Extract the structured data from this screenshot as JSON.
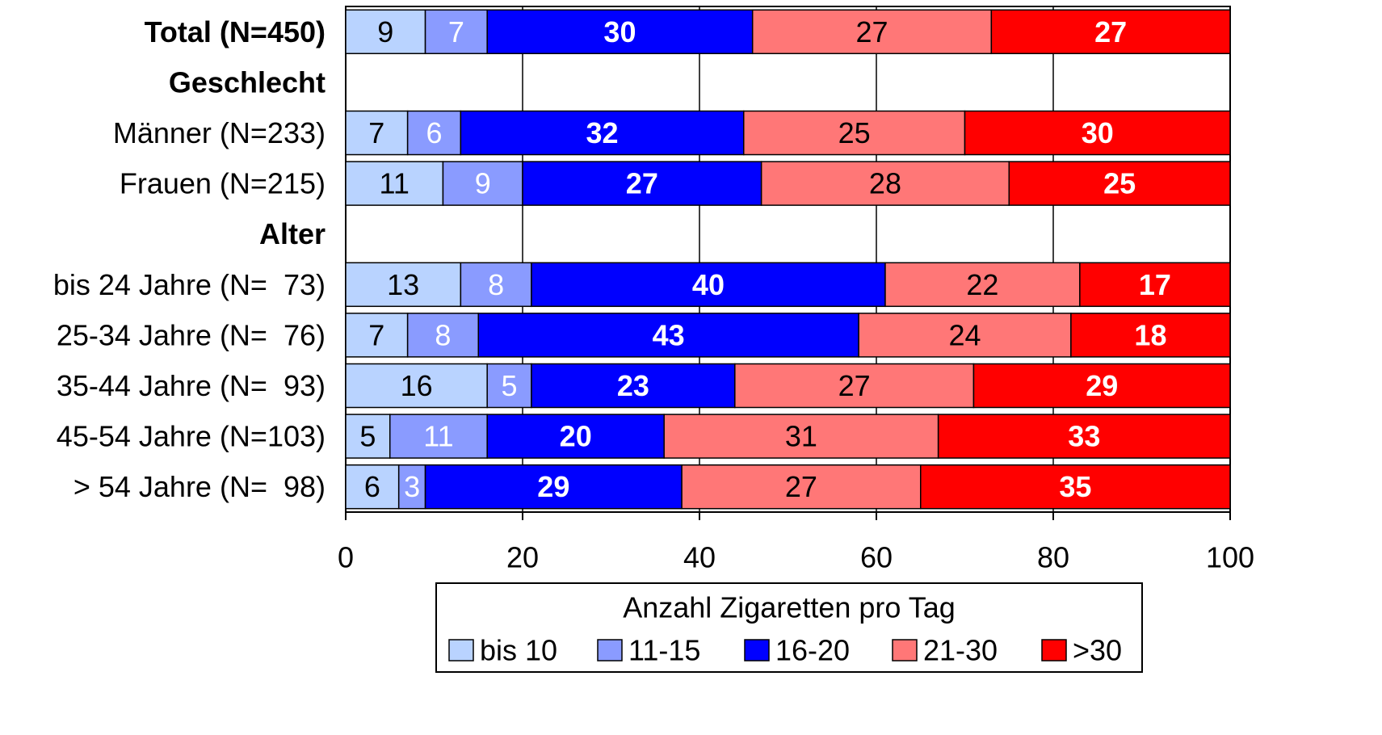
{
  "chart_data": {
    "type": "stacked_barh",
    "categories": [
      "Total (N=450)",
      "Geschlecht",
      "Männer (N=233)",
      "Frauen (N=215)",
      "Alter",
      "bis 24 Jahre (N=  73)",
      "25-34 Jahre (N=  76)",
      "35-44 Jahre (N=  93)",
      "45-54 Jahre (N=103)",
      "> 54 Jahre (N=  98)"
    ],
    "category_weights": [
      "bold",
      "bold",
      "normal",
      "normal",
      "bold",
      "normal",
      "normal",
      "normal",
      "normal",
      "normal"
    ],
    "series": [
      {
        "name": "bis 10",
        "color": "#b9d3ff",
        "label_color": "#000000",
        "label_weight": "normal",
        "values": [
          9,
          null,
          7,
          11,
          null,
          13,
          7,
          16,
          5,
          6
        ]
      },
      {
        "name": "11-15",
        "color": "#8a9bff",
        "label_color": "#ffffff",
        "label_weight": "normal",
        "values": [
          7,
          null,
          6,
          9,
          null,
          8,
          8,
          5,
          11,
          3
        ]
      },
      {
        "name": "16-20",
        "color": "#0000ff",
        "label_color": "#ffffff",
        "label_weight": "bold",
        "values": [
          30,
          null,
          32,
          27,
          null,
          40,
          43,
          23,
          20,
          29
        ]
      },
      {
        "name": "21-30",
        "color": "#ff7777",
        "label_color": "#000000",
        "label_weight": "normal",
        "values": [
          27,
          null,
          25,
          28,
          null,
          22,
          24,
          27,
          31,
          27
        ]
      },
      {
        "name": ">30",
        "color": "#ff0000",
        "label_color": "#ffffff",
        "label_weight": "bold",
        "values": [
          27,
          null,
          30,
          25,
          null,
          17,
          18,
          29,
          33,
          35
        ]
      }
    ],
    "xlim": [
      0,
      100
    ],
    "xticks": [
      0,
      20,
      40,
      60,
      80,
      100
    ],
    "grid": true,
    "legend_title": "Anzahl Zigaretten pro Tag",
    "legend_position": "bottom"
  }
}
